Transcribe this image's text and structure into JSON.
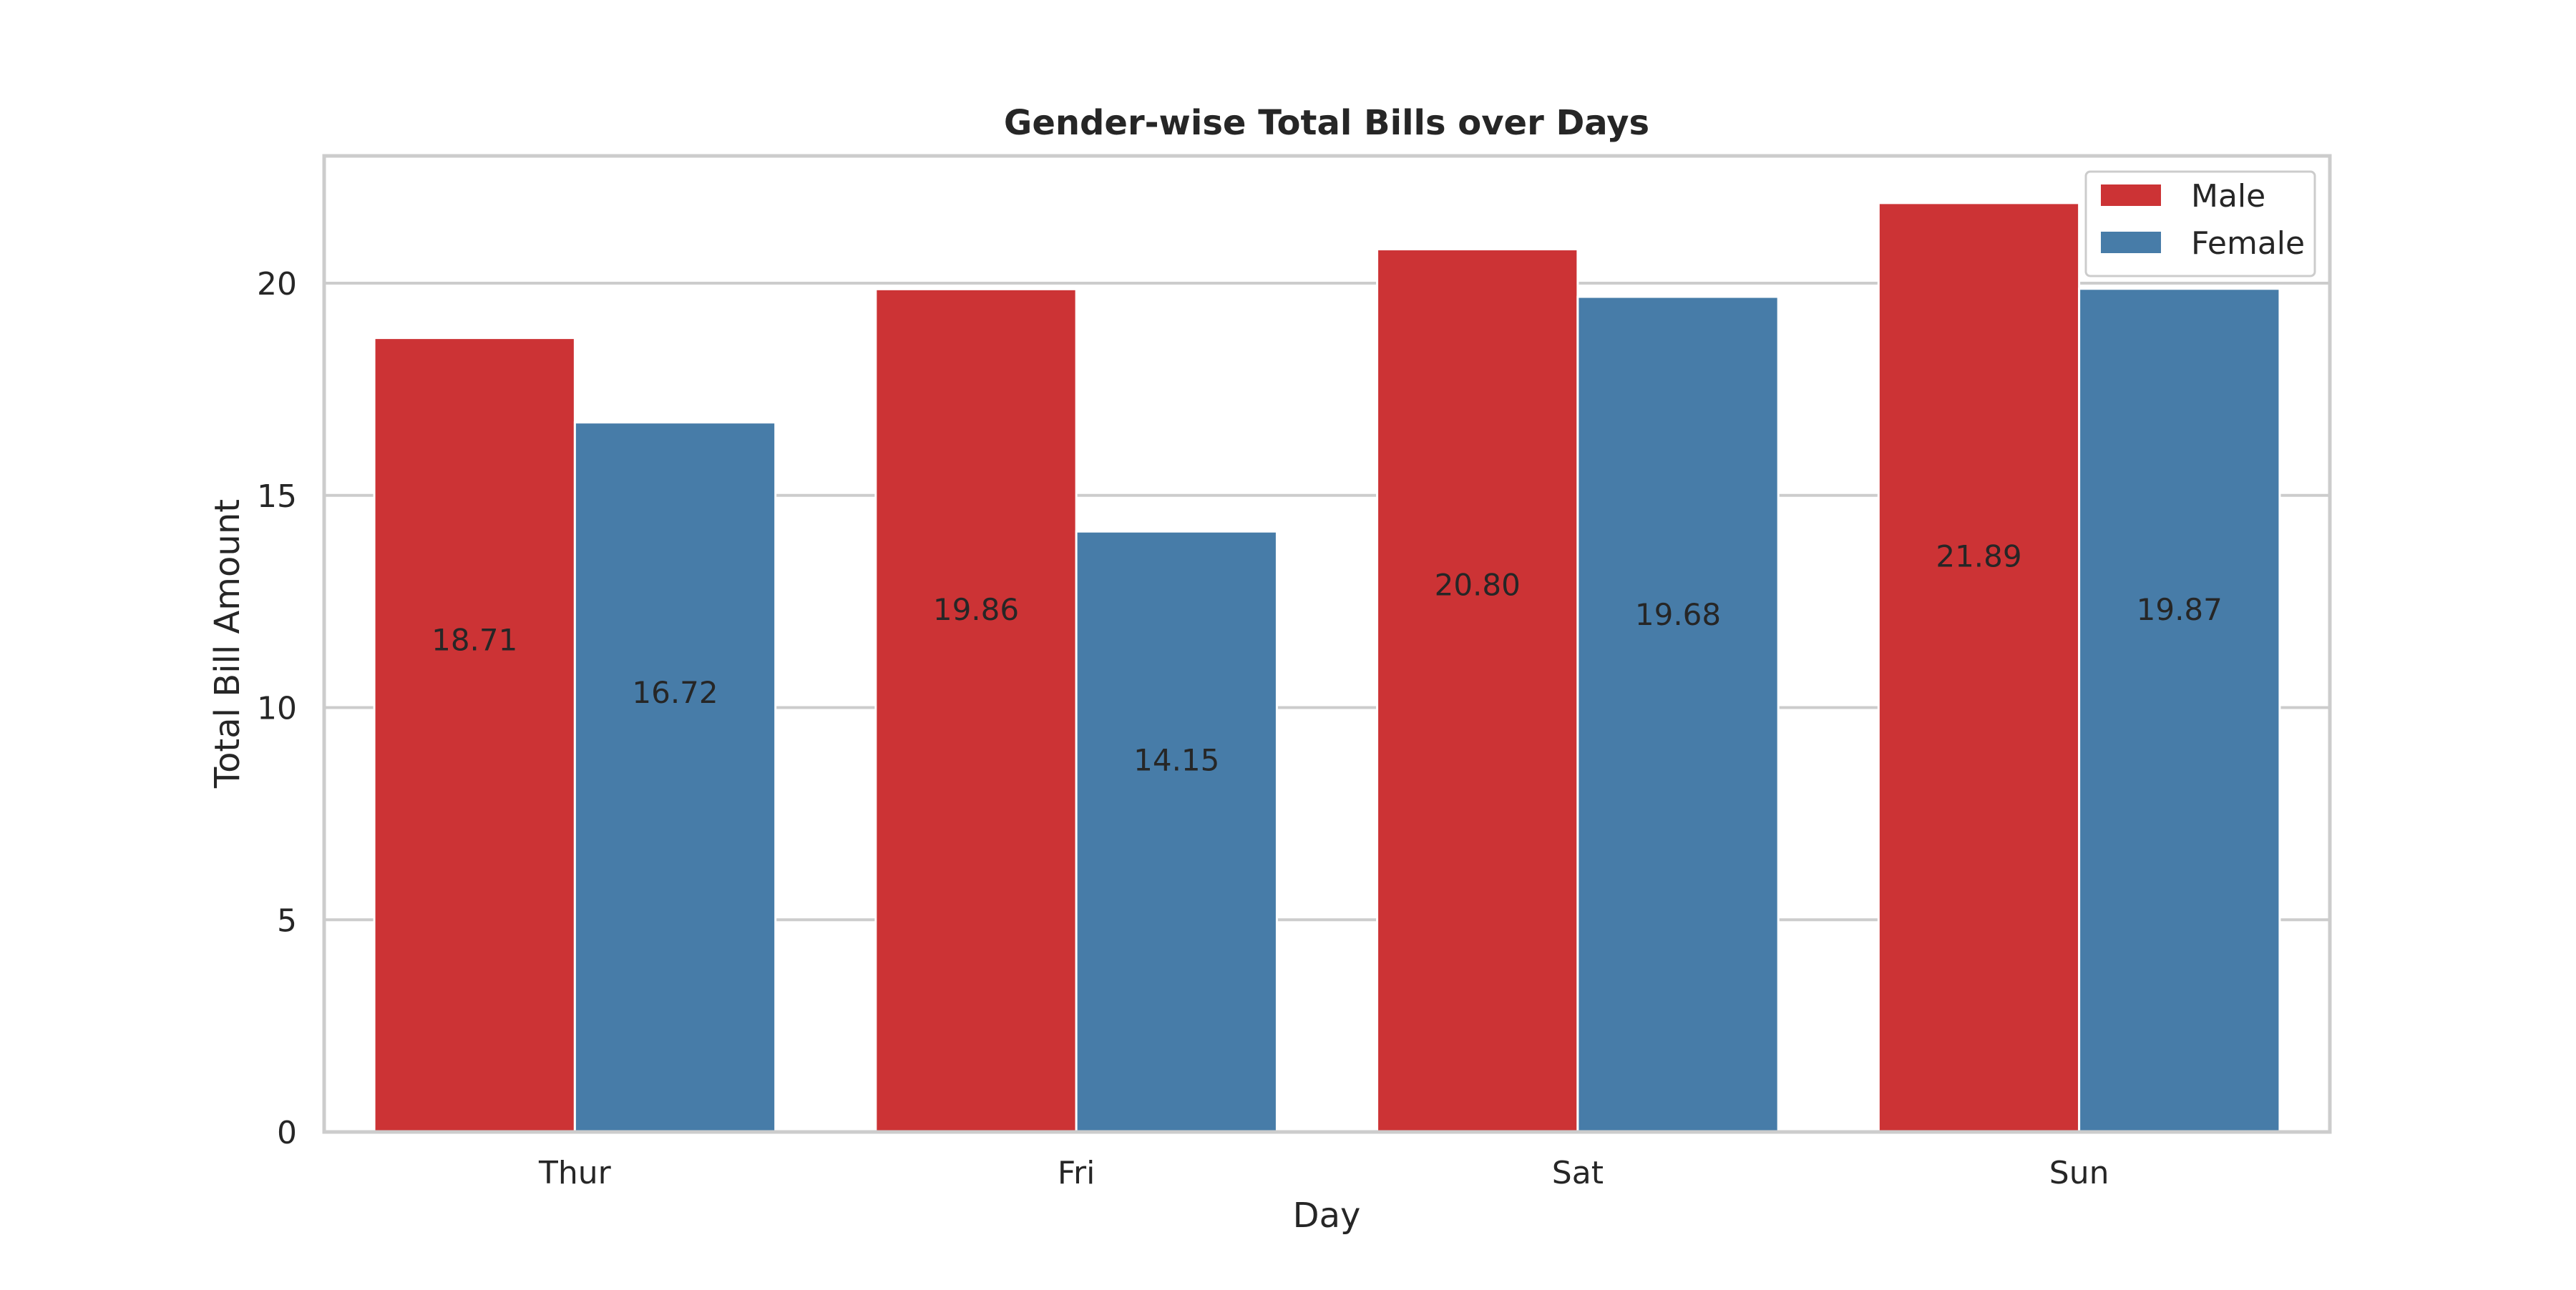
{
  "chart_data": {
    "type": "bar",
    "title": "Gender-wise Total Bills over Days",
    "xlabel": "Day",
    "ylabel": "Total Bill Amount",
    "categories": [
      "Thur",
      "Fri",
      "Sat",
      "Sun"
    ],
    "series": [
      {
        "name": "Male",
        "color": "#cc3335",
        "values": [
          18.71,
          19.86,
          20.8,
          21.89
        ],
        "data_labels": [
          "18.71",
          "19.86",
          "20.80",
          "21.89"
        ]
      },
      {
        "name": "Female",
        "color": "#477ca8",
        "values": [
          16.72,
          14.15,
          19.68,
          19.87
        ],
        "data_labels": [
          "16.72",
          "14.15",
          "19.68",
          "19.87"
        ]
      }
    ],
    "ylim": [
      0,
      23
    ],
    "yticks": [
      0,
      5,
      10,
      15,
      20
    ],
    "ytick_labels": [
      "0",
      "5",
      "10",
      "15",
      "20"
    ],
    "grid": true,
    "legend_position": "top-right"
  }
}
